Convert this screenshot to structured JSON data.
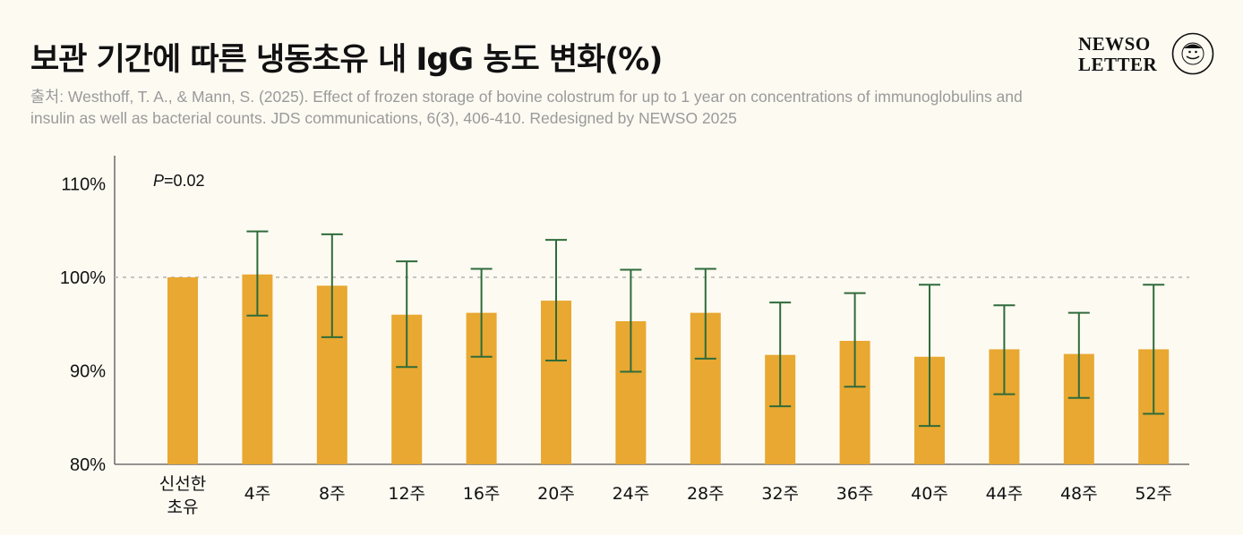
{
  "header": {
    "title": "보관 기간에 따른 냉동초유 내 IgG 농도 변화(%)",
    "source": "출처: Westhoff, T. A., & Mann, S. (2025). Effect of frozen storage of bovine colostrum for up to 1 year on concentrations of immunoglobulins and insulin as well as bacterial counts. JDS communications, 6(3), 406-410. Redesigned by NEWSO 2025"
  },
  "logo": {
    "line1": "NEWSO",
    "line2": "LETTER",
    "seal_text": "NEWSO LETTER"
  },
  "colors": {
    "bar": "#e8a831",
    "error_bar": "#2f6b3a",
    "reference_line": "#b8b8b8",
    "background": "#fdfaf2"
  },
  "chart_data": {
    "type": "bar",
    "title": "보관 기간에 따른 냉동초유 내 IgG 농도 변화(%)",
    "annotation": {
      "italic": "P",
      "rest": "=0.02"
    },
    "categories": [
      [
        "신선한",
        "초유"
      ],
      "4주",
      "8주",
      "12주",
      "16주",
      "20주",
      "24주",
      "28주",
      "32주",
      "36주",
      "40주",
      "44주",
      "48주",
      "52주"
    ],
    "values": [
      100,
      100.3,
      99.1,
      96.0,
      96.2,
      97.5,
      95.3,
      96.2,
      91.7,
      93.2,
      91.5,
      92.3,
      91.8,
      92.3
    ],
    "error_low": [
      null,
      95.9,
      93.6,
      90.4,
      91.5,
      91.1,
      89.9,
      91.3,
      86.2,
      88.3,
      84.1,
      87.5,
      87.1,
      85.4
    ],
    "error_high": [
      null,
      104.9,
      104.6,
      101.7,
      100.9,
      104.0,
      100.8,
      100.9,
      97.3,
      98.3,
      99.2,
      97.0,
      96.2,
      99.2
    ],
    "ylim": [
      80,
      113
    ],
    "yticks": [
      80,
      90,
      100,
      110
    ],
    "ytick_labels": [
      "80%",
      "90%",
      "100%",
      "110%"
    ],
    "reference_line": 100,
    "xlabel": "",
    "ylabel": "",
    "grid": false
  }
}
